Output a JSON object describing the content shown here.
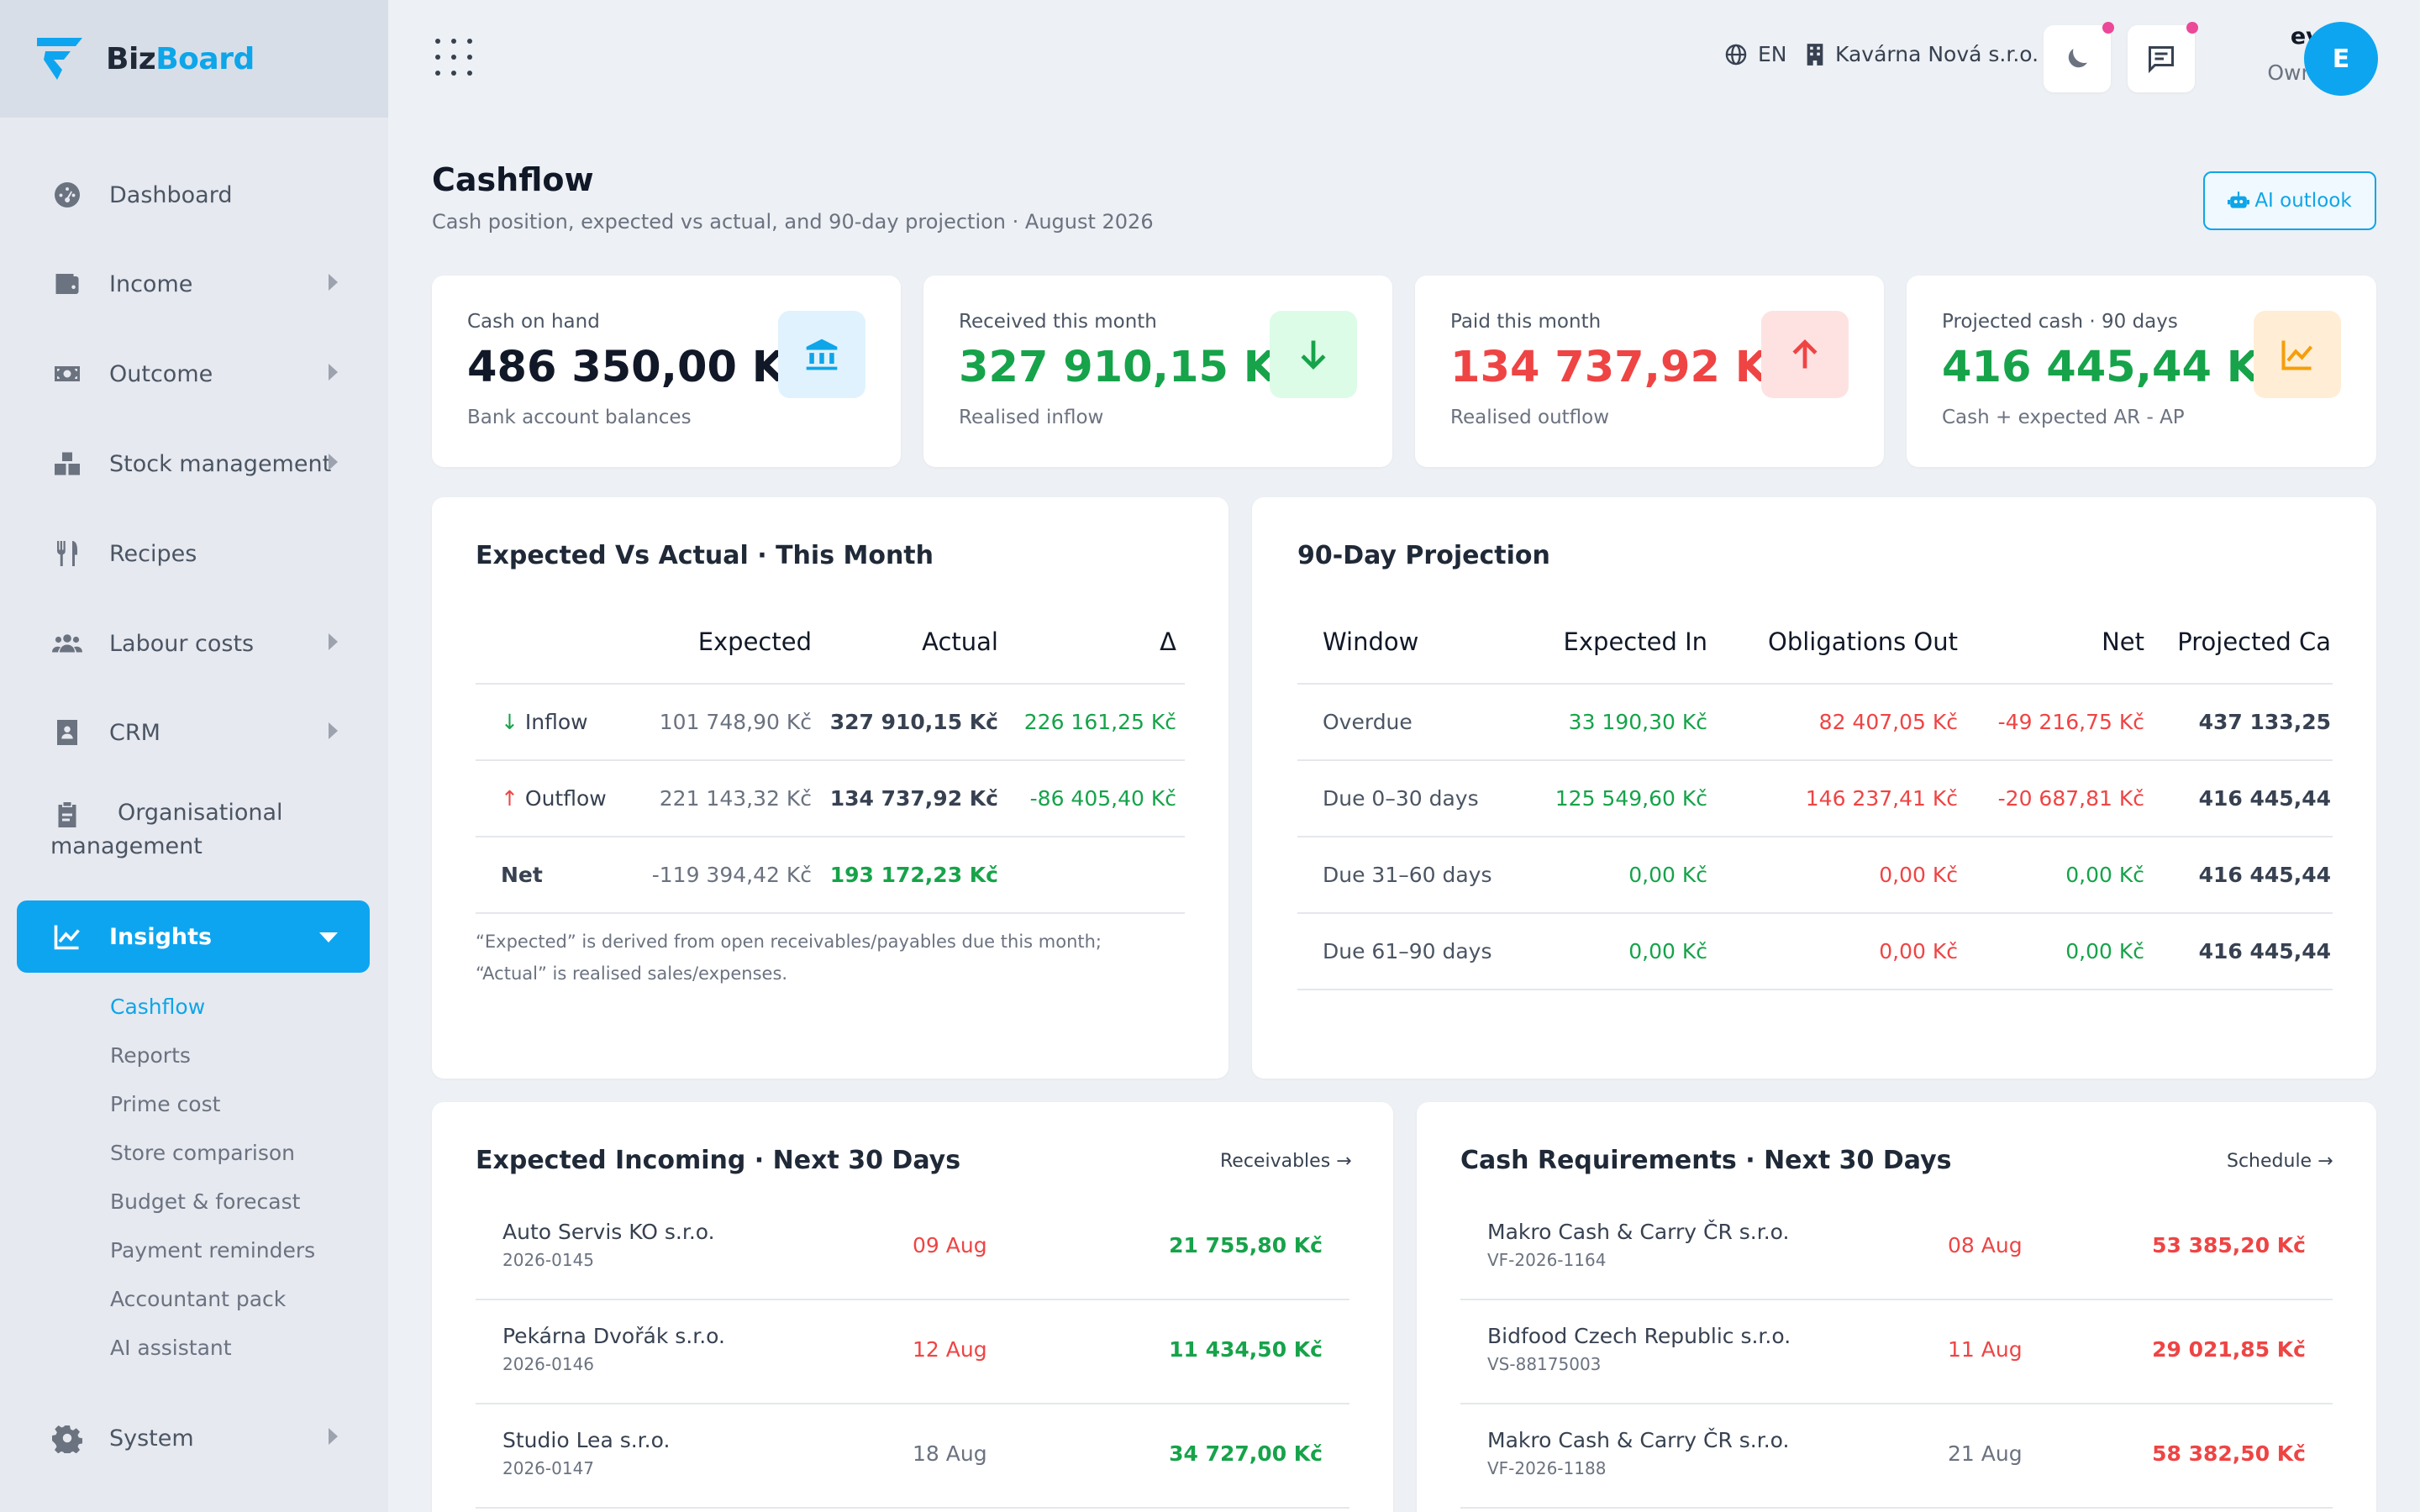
{
  "brand": {
    "part1": "Biz",
    "part2": "Board"
  },
  "sidebar": {
    "items": [
      {
        "label": "Dashboard",
        "icon": "dashboard-icon"
      },
      {
        "label": "Income",
        "icon": "wallet-icon"
      },
      {
        "label": "Outcome",
        "icon": "money-icon"
      },
      {
        "label": "Stock management",
        "icon": "boxes-icon"
      },
      {
        "label": "Recipes",
        "icon": "utensils-icon"
      },
      {
        "label": "Labour costs",
        "icon": "users-icon"
      },
      {
        "label": "CRM",
        "icon": "contact-card-icon"
      },
      {
        "label": "Organisational management",
        "icon": "clipboard-icon"
      },
      {
        "label": "Insights",
        "icon": "chart-line-icon"
      },
      {
        "label": "System",
        "icon": "gear-icon"
      }
    ],
    "insights_sub": [
      "Cashflow",
      "Reports",
      "Prime cost",
      "Store comparison",
      "Budget & forecast",
      "Payment reminders",
      "Accountant pack",
      "AI assistant"
    ]
  },
  "topbar": {
    "language": "EN",
    "company": "Kavárna Nová s.r.o.",
    "user_name": "eva",
    "user_role": "Owner",
    "avatar_initial": "E"
  },
  "page": {
    "title": "Cashflow",
    "subtitle": "Cash position, expected vs actual, and 90-day projection · August 2026",
    "ai_button": "AI outlook"
  },
  "kpis": [
    {
      "label": "Cash on hand",
      "value": "486 350,00 Kč",
      "note": "Bank account balances",
      "icon": "bank-icon"
    },
    {
      "label": "Received this month",
      "value": "327 910,15 Kč",
      "note": "Realised inflow",
      "icon": "arrow-down-icon"
    },
    {
      "label": "Paid this month",
      "value": "134 737,92 Kč",
      "note": "Realised outflow",
      "icon": "arrow-up-icon"
    },
    {
      "label": "Projected cash · 90 days",
      "value": "416 445,44 Kč",
      "note": "Cash + expected AR - AP",
      "icon": "chart-icon"
    }
  ],
  "expected_vs_actual": {
    "title": "Expected Vs Actual · This Month",
    "headers": [
      "",
      "Expected",
      "Actual",
      "Δ"
    ],
    "rows": [
      {
        "label": "Inflow",
        "expected": "101 748,90 Kč",
        "actual": "327 910,15 Kč",
        "delta": "226 161,25 Kč"
      },
      {
        "label": "Outflow",
        "expected": "221 143,32 Kč",
        "actual": "134 737,92 Kč",
        "delta": "-86 405,40 Kč"
      },
      {
        "label": "Net",
        "expected": "-119 394,42 Kč",
        "actual": "193 172,23 Kč",
        "delta": ""
      }
    ],
    "note_line1": "“Expected” is derived from open receivables/payables due this month;",
    "note_line2": "“Actual” is realised sales/expenses."
  },
  "projection": {
    "title": "90-Day Projection",
    "headers": [
      "Window",
      "Expected In",
      "Obligations Out",
      "Net",
      "Projected Ca"
    ],
    "rows": [
      {
        "window": "Overdue",
        "in": "33 190,30 Kč",
        "out": "82 407,05 Kč",
        "net": "-49 216,75 Kč",
        "projected": "437 133,25"
      },
      {
        "window": "Due 0–30 days",
        "in": "125 549,60 Kč",
        "out": "146 237,41 Kč",
        "net": "-20 687,81 Kč",
        "projected": "416 445,44"
      },
      {
        "window": "Due 31–60 days",
        "in": "0,00 Kč",
        "out": "0,00 Kč",
        "net": "0,00 Kč",
        "projected": "416 445,44"
      },
      {
        "window": "Due 61–90 days",
        "in": "0,00 Kč",
        "out": "0,00 Kč",
        "net": "0,00 Kč",
        "projected": "416 445,44"
      }
    ]
  },
  "incoming": {
    "title": "Expected Incoming · Next 30 Days",
    "link": "Receivables",
    "rows": [
      {
        "name": "Auto Servis KO s.r.o.",
        "ref": "2026-0145",
        "date": "09 Aug",
        "amount": "21 755,80 Kč",
        "overdue": true
      },
      {
        "name": "Pekárna Dvořák s.r.o.",
        "ref": "2026-0146",
        "date": "12 Aug",
        "amount": "11 434,50 Kč",
        "overdue": true
      },
      {
        "name": "Studio Lea s.r.o.",
        "ref": "2026-0147",
        "date": "18 Aug",
        "amount": "34 727,00 Kč",
        "overdue": false
      }
    ]
  },
  "requirements": {
    "title": "Cash Requirements · Next 30 Days",
    "link": "Schedule",
    "rows": [
      {
        "name": "Makro Cash & Carry ČR s.r.o.",
        "ref": "VF-2026-1164",
        "date": "08 Aug",
        "amount": "53 385,20 Kč",
        "overdue": true
      },
      {
        "name": "Bidfood Czech Republic s.r.o.",
        "ref": "VS-88175003",
        "date": "11 Aug",
        "amount": "29 021,85 Kč",
        "overdue": true
      },
      {
        "name": "Makro Cash & Carry ČR s.r.o.",
        "ref": "VF-2026-1188",
        "date": "21 Aug",
        "amount": "58 382,50 Kč",
        "overdue": false
      }
    ]
  },
  "colors": {
    "accent": "#0ea5f0",
    "green": "#16a34a",
    "red": "#ef4444",
    "orange": "#f59e0b"
  }
}
